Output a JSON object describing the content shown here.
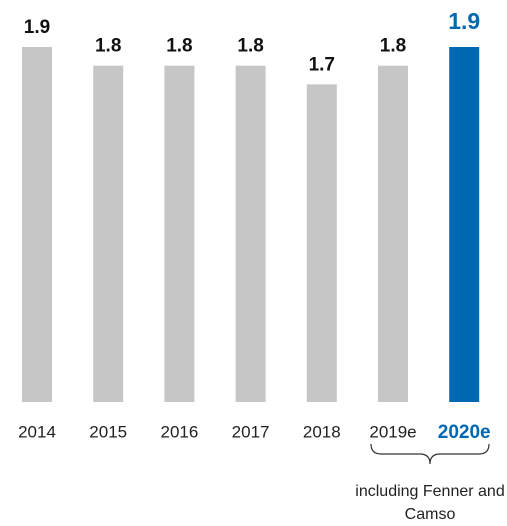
{
  "chart_data": {
    "type": "bar",
    "categories": [
      "2014",
      "2015",
      "2016",
      "2017",
      "2018",
      "2019e",
      "2020e"
    ],
    "values": [
      1.9,
      1.8,
      1.8,
      1.8,
      1.7,
      1.8,
      1.9
    ],
    "colors": [
      "#c6c6c6",
      "#c6c6c6",
      "#c6c6c6",
      "#c6c6c6",
      "#c6c6c6",
      "#c6c6c6",
      "#0067b1"
    ],
    "annotation": "including Fenner and Camso"
  }
}
